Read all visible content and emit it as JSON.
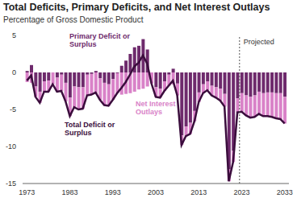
{
  "chart_data": {
    "type": "bar",
    "title": "Total Deficits, Primary Deficits, and Net Interest Outlays",
    "subtitle": "Percentage of Gross Domestic Product",
    "stacked": true,
    "grid": false,
    "x": [
      1973,
      1974,
      1975,
      1976,
      1977,
      1978,
      1979,
      1980,
      1981,
      1982,
      1983,
      1984,
      1985,
      1986,
      1987,
      1988,
      1989,
      1990,
      1991,
      1992,
      1993,
      1994,
      1995,
      1996,
      1997,
      1998,
      1999,
      2000,
      2001,
      2002,
      2003,
      2004,
      2005,
      2006,
      2007,
      2008,
      2009,
      2010,
      2011,
      2012,
      2013,
      2014,
      2015,
      2016,
      2017,
      2018,
      2019,
      2020,
      2021,
      2022,
      2023,
      2024,
      2025,
      2026,
      2027,
      2028,
      2029,
      2030,
      2031,
      2032,
      2033
    ],
    "xlim": [
      1972,
      2034
    ],
    "xticks": [
      1973,
      1983,
      1993,
      2003,
      2013,
      2023,
      2033
    ],
    "ylim": [
      -15,
      5
    ],
    "yticks": [
      -15,
      -10,
      -5,
      0,
      5
    ],
    "series": [
      {
        "name": "Primary Deficit or Surplus",
        "type": "bar",
        "color": "#6e2a6c",
        "values": [
          0.2,
          1.0,
          -1.9,
          -2.6,
          -1.2,
          -1.1,
          0.0,
          -0.7,
          -0.3,
          -1.4,
          -3.4,
          -1.9,
          -2.0,
          -2.0,
          -0.3,
          -0.2,
          0.2,
          -0.8,
          -1.4,
          -1.6,
          -0.9,
          -0.1,
          0.9,
          1.6,
          2.5,
          3.4,
          3.6,
          4.5,
          3.1,
          0.0,
          -2.0,
          -2.2,
          -1.2,
          -0.3,
          0.5,
          -1.5,
          -8.5,
          -7.3,
          -6.8,
          -5.2,
          -2.7,
          -1.6,
          -1.2,
          -1.8,
          -2.0,
          -2.2,
          -2.9,
          -13.1,
          -10.6,
          -3.5,
          -2.8,
          -3.1,
          -3.3,
          -3.1,
          -2.6,
          -2.8,
          -2.7,
          -2.7,
          -2.8,
          -2.8,
          -3.3
        ]
      },
      {
        "name": "Net Interest Outlays",
        "type": "bar",
        "color": "#d982c8",
        "values": [
          -1.3,
          -1.4,
          -1.4,
          -1.5,
          -1.4,
          -1.5,
          -1.6,
          -1.9,
          -2.2,
          -2.5,
          -2.5,
          -2.8,
          -3.0,
          -2.9,
          -2.8,
          -2.8,
          -2.9,
          -2.9,
          -3.0,
          -2.9,
          -2.8,
          -2.7,
          -3.0,
          -2.9,
          -2.8,
          -2.6,
          -2.3,
          -2.2,
          -1.9,
          -1.5,
          -1.3,
          -1.2,
          -1.3,
          -1.5,
          -1.6,
          -1.6,
          -1.3,
          -1.3,
          -1.5,
          -1.4,
          -1.3,
          -1.2,
          -1.2,
          -1.3,
          -1.4,
          -1.6,
          -1.7,
          -1.6,
          -1.5,
          -1.9,
          -2.5,
          -2.7,
          -2.8,
          -2.9,
          -3.0,
          -3.1,
          -3.2,
          -3.3,
          -3.4,
          -3.5,
          -3.6
        ]
      },
      {
        "name": "Total Deficit or Surplus",
        "type": "line",
        "color": "#3a0d3c",
        "values": [
          -1.1,
          -0.4,
          -3.3,
          -4.1,
          -2.6,
          -2.6,
          -1.6,
          -2.6,
          -2.5,
          -3.9,
          -5.9,
          -4.7,
          -5.0,
          -4.9,
          -3.1,
          -3.0,
          -2.7,
          -3.7,
          -4.4,
          -4.5,
          -3.7,
          -2.8,
          -2.1,
          -1.3,
          -0.3,
          0.8,
          1.3,
          2.3,
          1.2,
          -1.5,
          -3.3,
          -3.4,
          -2.5,
          -1.8,
          -1.1,
          -3.1,
          -9.8,
          -8.6,
          -8.3,
          -6.6,
          -4.0,
          -2.8,
          -2.4,
          -3.1,
          -3.4,
          -3.8,
          -4.6,
          -14.7,
          -12.1,
          -5.4,
          -5.3,
          -5.8,
          -6.1,
          -6.0,
          -5.6,
          -5.9,
          -5.9,
          -6.0,
          -6.2,
          -6.3,
          -6.9
        ]
      }
    ],
    "annotations": [
      {
        "text": "Projected",
        "x": 2022.5
      }
    ]
  }
}
